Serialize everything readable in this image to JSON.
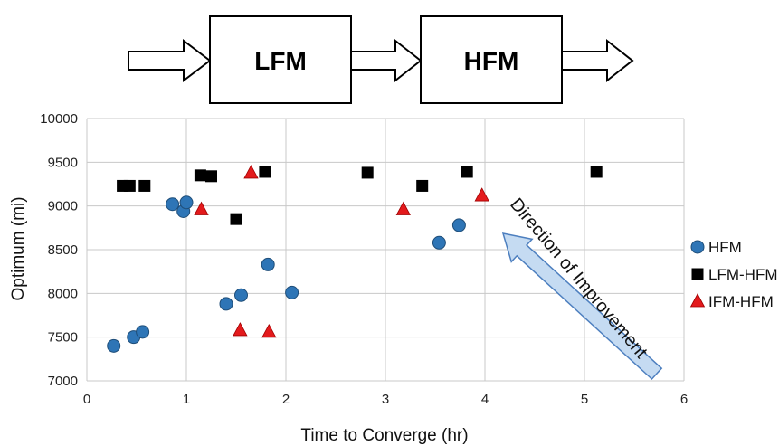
{
  "flow": {
    "boxes": [
      "LFM",
      "HFM"
    ]
  },
  "chart_data": {
    "type": "scatter",
    "title": "",
    "xlabel": "Time to Converge (hr)",
    "ylabel": "Optimum (mi)",
    "xlim": [
      0,
      6
    ],
    "ylim": [
      7000,
      10000
    ],
    "xticks": [
      0,
      1,
      2,
      3,
      4,
      5,
      6
    ],
    "yticks": [
      7000,
      7500,
      8000,
      8500,
      9000,
      9500,
      10000
    ],
    "grid": true,
    "legend_position": "right",
    "series": [
      {
        "name": "HFM",
        "marker": "circle",
        "color": "#2e75b6",
        "points": [
          [
            0.27,
            7400
          ],
          [
            0.47,
            7500
          ],
          [
            0.56,
            7560
          ],
          [
            0.86,
            9020
          ],
          [
            0.97,
            8940
          ],
          [
            1.0,
            9040
          ],
          [
            1.4,
            7880
          ],
          [
            1.55,
            7980
          ],
          [
            1.82,
            8330
          ],
          [
            2.06,
            8010
          ],
          [
            3.54,
            8580
          ],
          [
            3.74,
            8780
          ]
        ]
      },
      {
        "name": "LFM-HFM",
        "marker": "square",
        "color": "#000000",
        "points": [
          [
            0.36,
            9230
          ],
          [
            0.43,
            9230
          ],
          [
            0.58,
            9230
          ],
          [
            1.14,
            9350
          ],
          [
            1.25,
            9340
          ],
          [
            1.5,
            8850
          ],
          [
            1.79,
            9390
          ],
          [
            2.82,
            9380
          ],
          [
            3.37,
            9230
          ],
          [
            3.82,
            9390
          ],
          [
            5.12,
            9390
          ]
        ]
      },
      {
        "name": "IFM-HFM",
        "marker": "triangle",
        "color": "#e31a1c",
        "points": [
          [
            1.15,
            8960
          ],
          [
            1.54,
            7580
          ],
          [
            1.65,
            9380
          ],
          [
            1.83,
            7560
          ],
          [
            3.18,
            8960
          ],
          [
            3.97,
            9120
          ]
        ]
      }
    ],
    "annotation": "Direction of Improvement"
  }
}
